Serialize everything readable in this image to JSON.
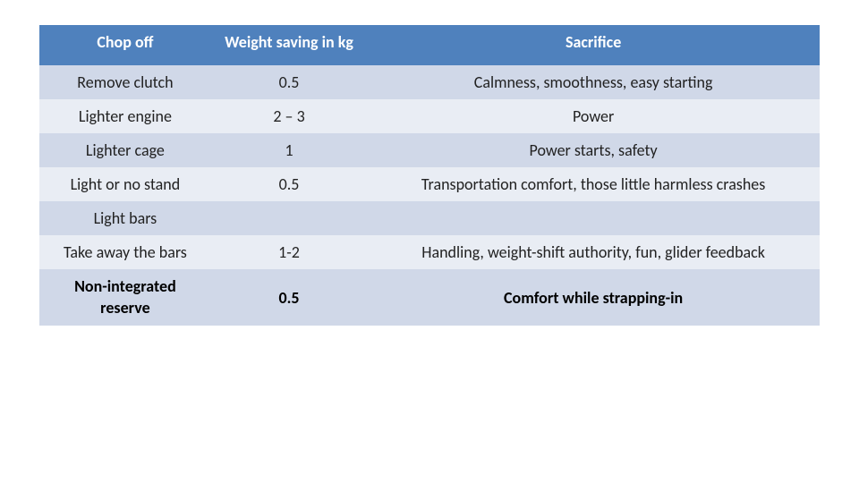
{
  "table": {
    "header_bg": "#4f81bd",
    "header_color": "#ffffff",
    "row_bg_odd": "#d0d8e8",
    "row_bg_even": "#e9edf4",
    "text_color": "#222222",
    "bold_text_color": "#000000",
    "header_fontsize": 18,
    "body_fontsize": 18,
    "col_widths_pct": [
      22,
      20,
      58
    ],
    "columns": [
      "Chop off",
      "Weight saving in kg",
      "Sacrifice"
    ],
    "rows": [
      {
        "cells": [
          "Remove clutch",
          "0.5",
          "Calmness, smoothness, easy starting"
        ],
        "bold": false
      },
      {
        "cells": [
          "Lighter engine",
          "2 – 3",
          "Power"
        ],
        "bold": false
      },
      {
        "cells": [
          "Lighter cage",
          "1",
          "Power starts, safety"
        ],
        "bold": false
      },
      {
        "cells": [
          "Light or no stand",
          "0.5",
          "Transportation comfort, those little harmless crashes"
        ],
        "bold": false
      },
      {
        "cells": [
          "Light bars",
          "",
          ""
        ],
        "bold": false
      },
      {
        "cells": [
          "Take away the bars",
          "1-2",
          "Handling, weight-shift authority, fun, glider feedback"
        ],
        "bold": false
      },
      {
        "cells": [
          "Non-integrated reserve",
          "0.5",
          "Comfort while strapping-in"
        ],
        "bold": true
      }
    ]
  }
}
